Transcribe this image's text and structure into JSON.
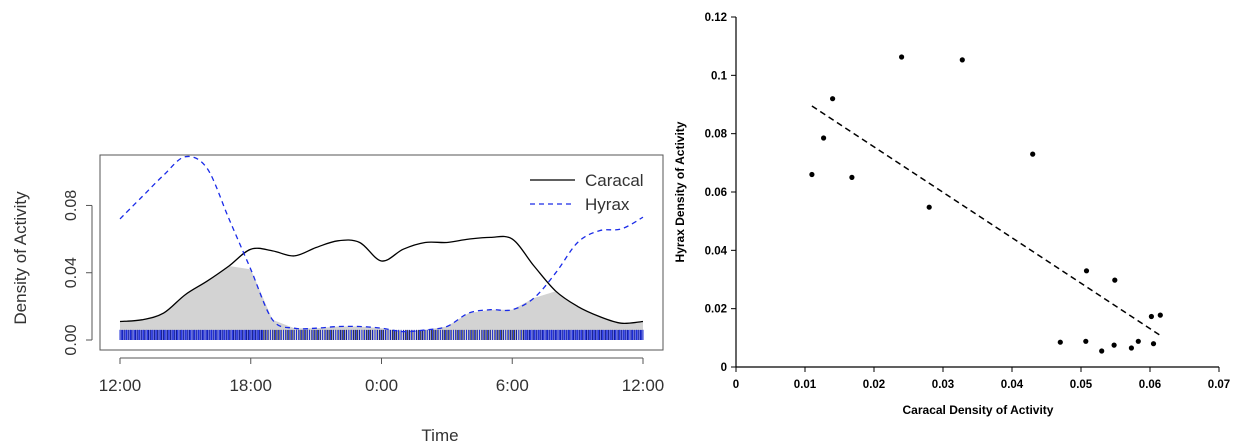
{
  "chart_data": [
    {
      "type": "area",
      "xlabel": "Time",
      "ylabel": "Density of Activity",
      "x_tick_labels": [
        "12:00",
        "18:00",
        "0:00",
        "6:00",
        "12:00"
      ],
      "y_tick_labels": [
        "0.00",
        "0.04",
        "0.08"
      ],
      "ylim": [
        0,
        0.11
      ],
      "overlap_fill": "#d3d3d3",
      "legend_position": "top-right",
      "x_hours_from_noon": [
        0,
        1,
        2,
        3,
        4,
        5,
        6,
        7,
        8,
        9,
        10,
        11,
        12,
        13,
        14,
        15,
        16,
        17,
        18,
        19,
        20,
        21,
        22,
        23,
        24
      ],
      "series": [
        {
          "name": "Caracal",
          "color": "#000000",
          "line": "solid",
          "values": [
            0.011,
            0.012,
            0.016,
            0.027,
            0.035,
            0.044,
            0.054,
            0.053,
            0.05,
            0.055,
            0.059,
            0.058,
            0.047,
            0.054,
            0.058,
            0.058,
            0.06,
            0.061,
            0.06,
            0.044,
            0.029,
            0.02,
            0.014,
            0.01,
            0.011
          ]
        },
        {
          "name": "Hyrax",
          "color": "#1a2be8",
          "line": "dashed",
          "values": [
            0.072,
            0.085,
            0.098,
            0.109,
            0.102,
            0.072,
            0.042,
            0.012,
            0.007,
            0.007,
            0.008,
            0.008,
            0.007,
            0.005,
            0.006,
            0.008,
            0.016,
            0.018,
            0.018,
            0.025,
            0.04,
            0.058,
            0.065,
            0.066,
            0.073
          ]
        }
      ],
      "rug": {
        "colors": [
          "#000000",
          "#1a2be8"
        ],
        "band": [
          0.0,
          0.006
        ]
      }
    },
    {
      "type": "scatter",
      "xlabel": "Caracal Density of Activity",
      "ylabel": "Hyrax Density of Activity",
      "xlim": [
        0,
        0.07
      ],
      "ylim": [
        0,
        0.12
      ],
      "x_tick_labels": [
        "0",
        "0.01",
        "0.02",
        "0.03",
        "0.04",
        "0.05",
        "0.06",
        "0.07"
      ],
      "y_tick_labels": [
        "0",
        "0.02",
        "0.04",
        "0.06",
        "0.08",
        "0.1",
        "0.12"
      ],
      "points": [
        [
          0.011,
          0.066
        ],
        [
          0.0127,
          0.0785
        ],
        [
          0.014,
          0.092
        ],
        [
          0.0168,
          0.065
        ],
        [
          0.024,
          0.1063
        ],
        [
          0.028,
          0.0548
        ],
        [
          0.0328,
          0.1053
        ],
        [
          0.043,
          0.073
        ],
        [
          0.047,
          0.0085
        ],
        [
          0.0507,
          0.0088
        ],
        [
          0.0508,
          0.033
        ],
        [
          0.053,
          0.0055
        ],
        [
          0.0548,
          0.0075
        ],
        [
          0.0549,
          0.0298
        ],
        [
          0.0573,
          0.0065
        ],
        [
          0.0583,
          0.0088
        ],
        [
          0.0602,
          0.0173
        ],
        [
          0.0605,
          0.008
        ],
        [
          0.0615,
          0.0178
        ]
      ],
      "trendline": {
        "style": "dashed",
        "from": [
          0.011,
          0.0895
        ],
        "to": [
          0.0615,
          0.0108
        ]
      }
    }
  ]
}
